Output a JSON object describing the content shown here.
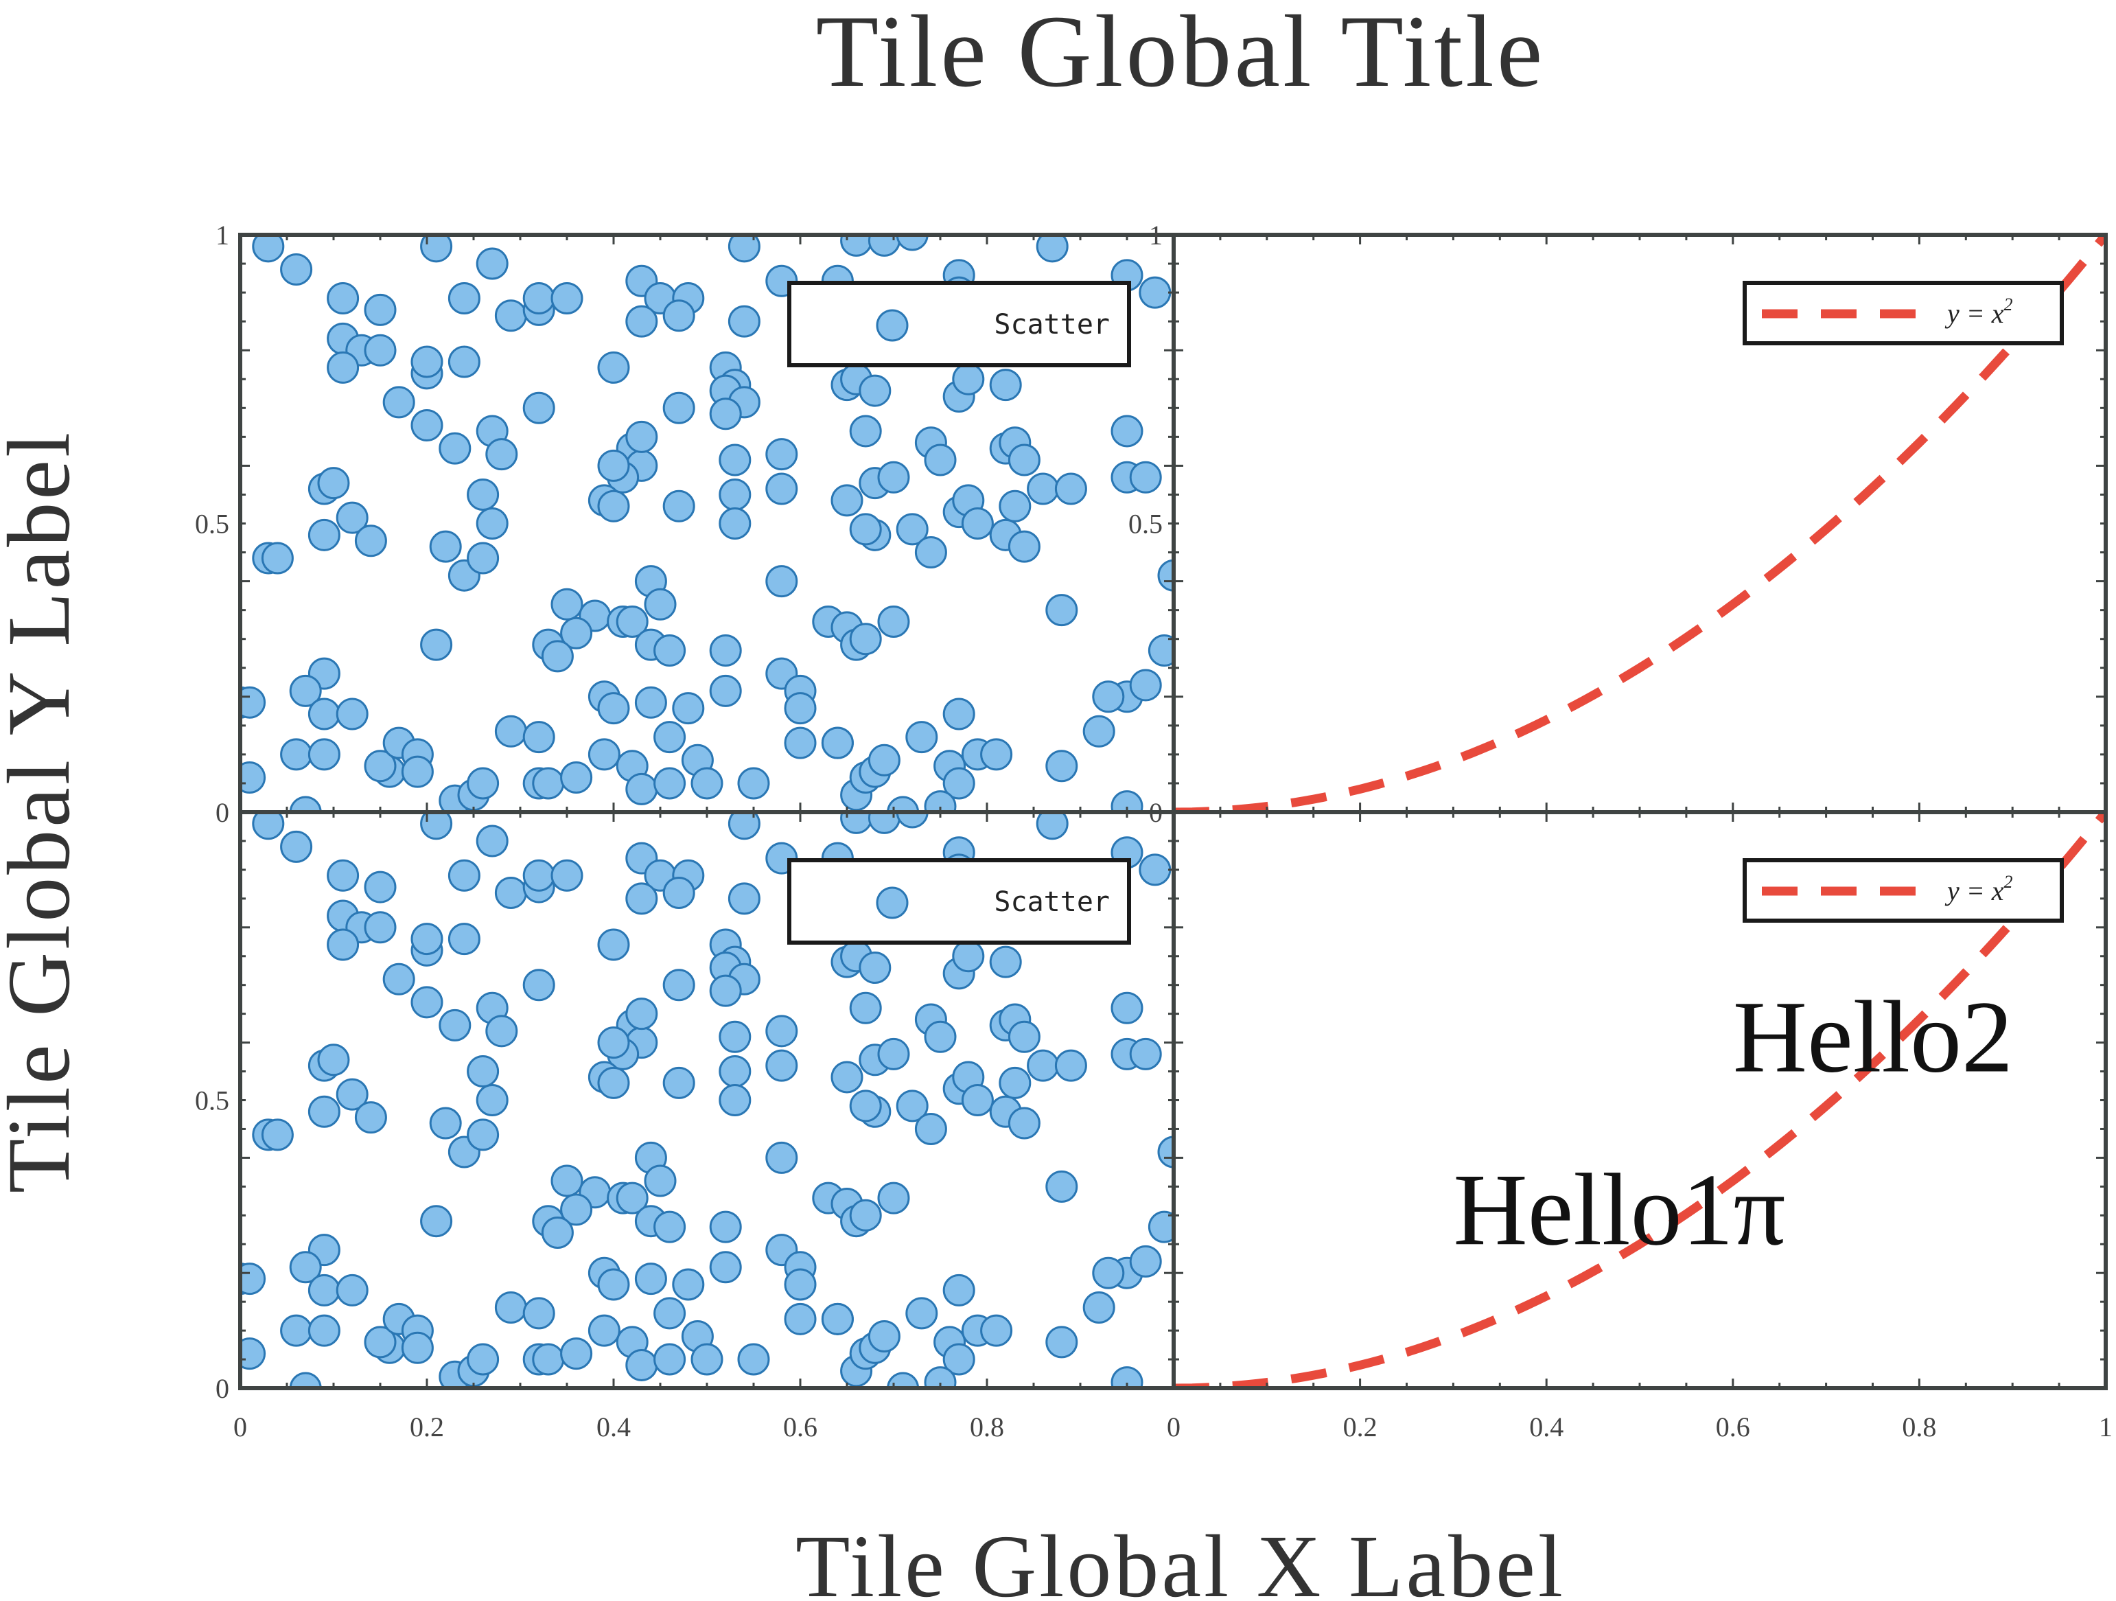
{
  "figure": {
    "title": "Tile Global Title",
    "xlabel": "Tile Global X Label",
    "ylabel": "Tile Global Y Label"
  },
  "colors": {
    "scatter_fill": "#85bfeb",
    "scatter_edge": "#2a77b4",
    "line": "#e84a3c",
    "axes": "#3f4443"
  },
  "chart_data": [
    {
      "id": "top-left",
      "type": "scatter",
      "xlim": [
        0,
        1
      ],
      "ylim": [
        0,
        1
      ],
      "yticks": [
        "0",
        "0.5",
        "1"
      ],
      "xticks": [],
      "legend": {
        "label": "Scatter",
        "placement": "top-right"
      },
      "points_ref": "scatter_points"
    },
    {
      "id": "top-right",
      "type": "line",
      "xlim": [
        0,
        1
      ],
      "ylim": [
        0,
        1
      ],
      "yticks": [
        "0",
        "0.5",
        "1"
      ],
      "xticks": [],
      "function": "y = x^2",
      "legend": {
        "label": "y = x",
        "superscript": "2",
        "placement": "top-right"
      }
    },
    {
      "id": "bottom-left",
      "type": "scatter",
      "xlim": [
        0,
        1
      ],
      "ylim": [
        0,
        1
      ],
      "yticks": [
        "0",
        "0.5",
        ""
      ],
      "xticks": [
        "0",
        "0.2",
        "0.4",
        "0.6",
        "0.8",
        ""
      ],
      "legend": {
        "label": "Scatter",
        "placement": "top-right"
      },
      "points_ref": "scatter_points"
    },
    {
      "id": "bottom-right",
      "type": "line",
      "xlim": [
        0,
        1
      ],
      "ylim": [
        0,
        1
      ],
      "yticks": [],
      "xticks": [
        "0",
        "0.2",
        "0.4",
        "0.6",
        "0.8",
        "1"
      ],
      "function": "y = x^2",
      "legend": {
        "label": "y = x",
        "superscript": "2",
        "placement": "top-right"
      },
      "annotations": [
        {
          "text": "Hello2",
          "x": 0.6,
          "y": 0.55
        },
        {
          "text": "Hello1π",
          "x": 0.3,
          "y": 0.25
        }
      ]
    }
  ],
  "scatter_points": [
    [
      0.03,
      0.98
    ],
    [
      0.06,
      0.94
    ],
    [
      0.21,
      0.98
    ],
    [
      0.27,
      0.95
    ],
    [
      0.54,
      0.98
    ],
    [
      0.66,
      0.99
    ],
    [
      0.69,
      0.99
    ],
    [
      0.72,
      1.0
    ],
    [
      0.87,
      0.98
    ],
    [
      0.58,
      0.92
    ],
    [
      0.64,
      0.92
    ],
    [
      0.77,
      0.93
    ],
    [
      0.95,
      0.93
    ],
    [
      0.98,
      0.9
    ],
    [
      0.11,
      0.89
    ],
    [
      0.15,
      0.87
    ],
    [
      0.24,
      0.89
    ],
    [
      0.29,
      0.86
    ],
    [
      0.32,
      0.87
    ],
    [
      0.32,
      0.89
    ],
    [
      0.35,
      0.89
    ],
    [
      0.43,
      0.92
    ],
    [
      0.45,
      0.89
    ],
    [
      0.48,
      0.89
    ],
    [
      0.47,
      0.86
    ],
    [
      0.43,
      0.85
    ],
    [
      0.54,
      0.85
    ],
    [
      0.7,
      0.85
    ],
    [
      0.77,
      0.9
    ],
    [
      0.11,
      0.82
    ],
    [
      0.13,
      0.8
    ],
    [
      0.15,
      0.8
    ],
    [
      0.11,
      0.77
    ],
    [
      0.2,
      0.76
    ],
    [
      0.2,
      0.78
    ],
    [
      0.24,
      0.78
    ],
    [
      0.4,
      0.77
    ],
    [
      0.52,
      0.77
    ],
    [
      0.53,
      0.74
    ],
    [
      0.52,
      0.73
    ],
    [
      0.54,
      0.71
    ],
    [
      0.65,
      0.74
    ],
    [
      0.66,
      0.75
    ],
    [
      0.68,
      0.73
    ],
    [
      0.77,
      0.72
    ],
    [
      0.78,
      0.75
    ],
    [
      0.82,
      0.74
    ],
    [
      0.17,
      0.71
    ],
    [
      0.2,
      0.67
    ],
    [
      0.23,
      0.63
    ],
    [
      0.27,
      0.66
    ],
    [
      0.32,
      0.7
    ],
    [
      0.28,
      0.62
    ],
    [
      0.42,
      0.63
    ],
    [
      0.43,
      0.6
    ],
    [
      0.41,
      0.58
    ],
    [
      0.43,
      0.65
    ],
    [
      0.4,
      0.6
    ],
    [
      0.47,
      0.7
    ],
    [
      0.52,
      0.69
    ],
    [
      0.53,
      0.61
    ],
    [
      0.58,
      0.62
    ],
    [
      0.67,
      0.66
    ],
    [
      0.68,
      0.57
    ],
    [
      0.7,
      0.58
    ],
    [
      0.74,
      0.64
    ],
    [
      0.75,
      0.61
    ],
    [
      0.82,
      0.63
    ],
    [
      0.83,
      0.64
    ],
    [
      0.84,
      0.61
    ],
    [
      0.86,
      0.56
    ],
    [
      0.89,
      0.56
    ],
    [
      0.95,
      0.66
    ],
    [
      0.95,
      0.58
    ],
    [
      0.97,
      0.58
    ],
    [
      0.09,
      0.56
    ],
    [
      0.1,
      0.57
    ],
    [
      0.12,
      0.51
    ],
    [
      0.09,
      0.48
    ],
    [
      0.14,
      0.47
    ],
    [
      0.03,
      0.44
    ],
    [
      0.04,
      0.44
    ],
    [
      0.22,
      0.46
    ],
    [
      0.24,
      0.41
    ],
    [
      0.26,
      0.55
    ],
    [
      0.27,
      0.5
    ],
    [
      0.26,
      0.44
    ],
    [
      0.39,
      0.54
    ],
    [
      0.4,
      0.53
    ],
    [
      0.47,
      0.53
    ],
    [
      0.53,
      0.55
    ],
    [
      0.53,
      0.5
    ],
    [
      0.58,
      0.56
    ],
    [
      0.65,
      0.54
    ],
    [
      0.68,
      0.48
    ],
    [
      0.67,
      0.49
    ],
    [
      0.72,
      0.49
    ],
    [
      0.74,
      0.45
    ],
    [
      0.77,
      0.52
    ],
    [
      0.78,
      0.54
    ],
    [
      0.79,
      0.5
    ],
    [
      0.82,
      0.48
    ],
    [
      0.83,
      0.53
    ],
    [
      0.84,
      0.46
    ],
    [
      1.0,
      0.41
    ],
    [
      0.35,
      0.36
    ],
    [
      0.38,
      0.34
    ],
    [
      0.36,
      0.31
    ],
    [
      0.33,
      0.29
    ],
    [
      0.34,
      0.27
    ],
    [
      0.41,
      0.33
    ],
    [
      0.42,
      0.33
    ],
    [
      0.44,
      0.4
    ],
    [
      0.45,
      0.36
    ],
    [
      0.44,
      0.29
    ],
    [
      0.46,
      0.28
    ],
    [
      0.52,
      0.28
    ],
    [
      0.58,
      0.4
    ],
    [
      0.63,
      0.33
    ],
    [
      0.65,
      0.32
    ],
    [
      0.66,
      0.29
    ],
    [
      0.67,
      0.3
    ],
    [
      0.7,
      0.33
    ],
    [
      0.21,
      0.29
    ],
    [
      0.88,
      0.35
    ],
    [
      0.99,
      0.28
    ],
    [
      0.0,
      0.19
    ],
    [
      0.01,
      0.19
    ],
    [
      0.09,
      0.24
    ],
    [
      0.07,
      0.21
    ],
    [
      0.09,
      0.17
    ],
    [
      0.12,
      0.17
    ],
    [
      0.39,
      0.2
    ],
    [
      0.4,
      0.18
    ],
    [
      0.44,
      0.19
    ],
    [
      0.46,
      0.13
    ],
    [
      0.48,
      0.18
    ],
    [
      0.52,
      0.21
    ],
    [
      0.58,
      0.24
    ],
    [
      0.6,
      0.21
    ],
    [
      0.6,
      0.18
    ],
    [
      0.6,
      0.12
    ],
    [
      0.64,
      0.12
    ],
    [
      0.77,
      0.17
    ],
    [
      0.73,
      0.13
    ],
    [
      0.95,
      0.2
    ],
    [
      0.93,
      0.2
    ],
    [
      0.97,
      0.22
    ],
    [
      0.92,
      0.14
    ],
    [
      0.01,
      0.06
    ],
    [
      0.06,
      0.1
    ],
    [
      0.09,
      0.1
    ],
    [
      0.16,
      0.07
    ],
    [
      0.15,
      0.08
    ],
    [
      0.17,
      0.12
    ],
    [
      0.19,
      0.1
    ],
    [
      0.19,
      0.07
    ],
    [
      0.23,
      0.02
    ],
    [
      0.25,
      0.03
    ],
    [
      0.26,
      0.05
    ],
    [
      0.29,
      0.14
    ],
    [
      0.32,
      0.13
    ],
    [
      0.32,
      0.05
    ],
    [
      0.33,
      0.05
    ],
    [
      0.36,
      0.06
    ],
    [
      0.39,
      0.1
    ],
    [
      0.42,
      0.08
    ],
    [
      0.43,
      0.04
    ],
    [
      0.46,
      0.05
    ],
    [
      0.49,
      0.09
    ],
    [
      0.5,
      0.05
    ],
    [
      0.55,
      0.05
    ],
    [
      0.64,
      0.12
    ],
    [
      0.66,
      0.03
    ],
    [
      0.67,
      0.06
    ],
    [
      0.68,
      0.07
    ],
    [
      0.69,
      0.09
    ],
    [
      0.71,
      0.0
    ],
    [
      0.76,
      0.08
    ],
    [
      0.77,
      0.05
    ],
    [
      0.79,
      0.1
    ],
    [
      0.81,
      0.1
    ],
    [
      0.88,
      0.08
    ],
    [
      0.95,
      0.01
    ],
    [
      0.07,
      0.0
    ],
    [
      0.75,
      0.01
    ]
  ]
}
